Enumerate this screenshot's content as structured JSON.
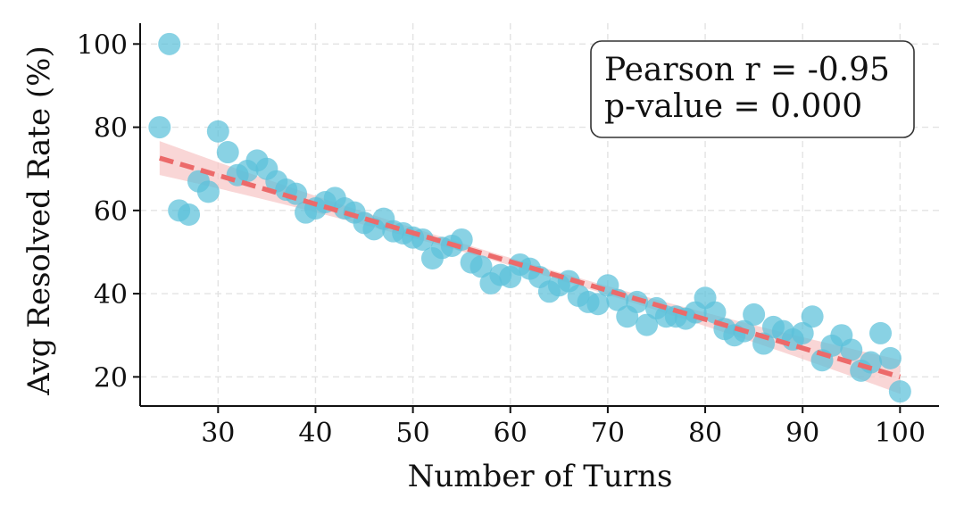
{
  "chart_data": {
    "type": "scatter",
    "xlabel": "Number of Turns",
    "ylabel": "Avg Resolved Rate (%)",
    "xlim": [
      22,
      104
    ],
    "ylim": [
      13,
      105
    ],
    "xticks": [
      30,
      40,
      50,
      60,
      70,
      80,
      90,
      100
    ],
    "yticks": [
      20,
      40,
      60,
      80,
      100
    ],
    "grid": true,
    "colors": {
      "points": "#5bc0d9",
      "trend": "#ec6a6a",
      "band": "#f6c4c4",
      "grid": "#e3e3e3",
      "axis": "#111111"
    },
    "annotation": {
      "position": "top-right",
      "lines": [
        "Pearson r = -0.95",
        "p-value = 0.000"
      ]
    },
    "trendline": {
      "x": [
        24,
        100
      ],
      "y": [
        72.6,
        20.0
      ]
    },
    "points": [
      {
        "x": 24,
        "y": 80
      },
      {
        "x": 25,
        "y": 100
      },
      {
        "x": 26,
        "y": 60
      },
      {
        "x": 27,
        "y": 59
      },
      {
        "x": 28,
        "y": 67
      },
      {
        "x": 29,
        "y": 64.5
      },
      {
        "x": 30,
        "y": 79
      },
      {
        "x": 31,
        "y": 74
      },
      {
        "x": 32,
        "y": 68.5
      },
      {
        "x": 33,
        "y": 69.5
      },
      {
        "x": 34,
        "y": 72
      },
      {
        "x": 35,
        "y": 70
      },
      {
        "x": 36,
        "y": 67
      },
      {
        "x": 37,
        "y": 65
      },
      {
        "x": 38,
        "y": 64
      },
      {
        "x": 39,
        "y": 59.5
      },
      {
        "x": 40,
        "y": 60.5
      },
      {
        "x": 41,
        "y": 62
      },
      {
        "x": 42,
        "y": 63
      },
      {
        "x": 43,
        "y": 60.5
      },
      {
        "x": 44,
        "y": 59.5
      },
      {
        "x": 45,
        "y": 57
      },
      {
        "x": 46,
        "y": 55.5
      },
      {
        "x": 47,
        "y": 58
      },
      {
        "x": 48,
        "y": 55
      },
      {
        "x": 49,
        "y": 54.5
      },
      {
        "x": 50,
        "y": 53.5
      },
      {
        "x": 51,
        "y": 53
      },
      {
        "x": 52,
        "y": 48.5
      },
      {
        "x": 53,
        "y": 51
      },
      {
        "x": 54,
        "y": 51.5
      },
      {
        "x": 55,
        "y": 53
      },
      {
        "x": 56,
        "y": 47.5
      },
      {
        "x": 57,
        "y": 46.5
      },
      {
        "x": 58,
        "y": 42.5
      },
      {
        "x": 59,
        "y": 44.5
      },
      {
        "x": 60,
        "y": 44
      },
      {
        "x": 61,
        "y": 47
      },
      {
        "x": 62,
        "y": 46
      },
      {
        "x": 63,
        "y": 44
      },
      {
        "x": 64,
        "y": 40.5
      },
      {
        "x": 65,
        "y": 42
      },
      {
        "x": 66,
        "y": 43
      },
      {
        "x": 67,
        "y": 39.5
      },
      {
        "x": 68,
        "y": 38
      },
      {
        "x": 69,
        "y": 37.5
      },
      {
        "x": 70,
        "y": 42
      },
      {
        "x": 71,
        "y": 38.5
      },
      {
        "x": 72,
        "y": 34.5
      },
      {
        "x": 73,
        "y": 38
      },
      {
        "x": 74,
        "y": 32.5
      },
      {
        "x": 75,
        "y": 36.5
      },
      {
        "x": 76,
        "y": 34.5
      },
      {
        "x": 77,
        "y": 34.5
      },
      {
        "x": 78,
        "y": 34
      },
      {
        "x": 79,
        "y": 35.5
      },
      {
        "x": 80,
        "y": 39
      },
      {
        "x": 81,
        "y": 35.5
      },
      {
        "x": 82,
        "y": 31.5
      },
      {
        "x": 83,
        "y": 30
      },
      {
        "x": 84,
        "y": 31
      },
      {
        "x": 85,
        "y": 35
      },
      {
        "x": 86,
        "y": 28
      },
      {
        "x": 87,
        "y": 32
      },
      {
        "x": 88,
        "y": 31
      },
      {
        "x": 89,
        "y": 29
      },
      {
        "x": 90,
        "y": 30.5
      },
      {
        "x": 91,
        "y": 34.5
      },
      {
        "x": 92,
        "y": 24
      },
      {
        "x": 93,
        "y": 27.5
      },
      {
        "x": 94,
        "y": 30
      },
      {
        "x": 95,
        "y": 26.5
      },
      {
        "x": 96,
        "y": 21.5
      },
      {
        "x": 97,
        "y": 23.5
      },
      {
        "x": 98,
        "y": 30.5
      },
      {
        "x": 99,
        "y": 24.5
      },
      {
        "x": 100,
        "y": 16.5
      }
    ]
  }
}
